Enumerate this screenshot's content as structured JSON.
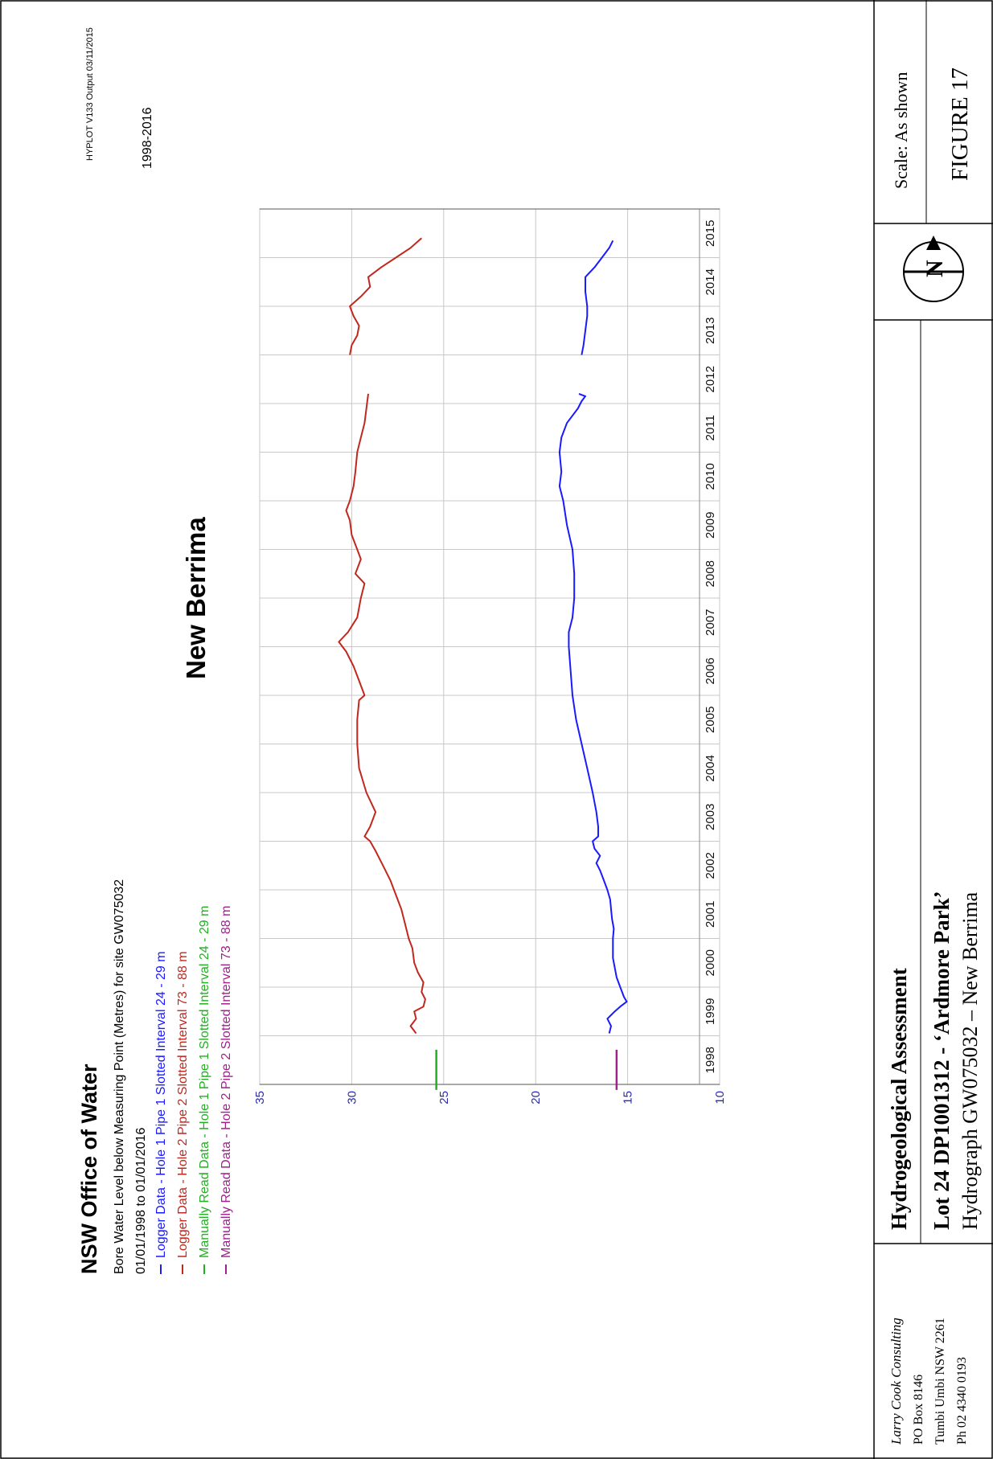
{
  "chart_data": {
    "type": "line",
    "orientation": "rotated-90-ccw",
    "title": "NSW Office of Water",
    "subtitle": "Bore Water Level below Measuring Point (Metres) for site GW075032",
    "date_range": "01/01/1998  to  01/01/2016",
    "output_info": "HYPLOT V133  Output 03/11/2015",
    "period": "1998-2016",
    "site_name": "New Berrima",
    "ylim": [
      10,
      35
    ],
    "y_inverted": true,
    "y_ticks": [
      "10",
      "15",
      "20",
      "25",
      "30",
      "35"
    ],
    "x_ticks": [
      "1998",
      "1999",
      "2000",
      "2001",
      "2002",
      "2003",
      "2004",
      "2005",
      "2006",
      "2007",
      "2008",
      "2009",
      "2010",
      "2011",
      "2012",
      "2013",
      "2014",
      "2015"
    ],
    "xlim": [
      1998,
      2016
    ],
    "grid": true,
    "legend_position": "top-left",
    "series": [
      {
        "name": "Logger Data - Hole 1 Pipe 1 Slotted Interval 24 - 29 m",
        "color": "#1a1aff",
        "points": [
          [
            1999.05,
            16.0
          ],
          [
            1999.2,
            15.9
          ],
          [
            1999.35,
            16.1
          ],
          [
            1999.5,
            15.7
          ],
          [
            1999.6,
            15.4
          ],
          [
            1999.7,
            15.05
          ],
          [
            1999.8,
            15.2
          ],
          [
            2000.0,
            15.4
          ],
          [
            2000.2,
            15.6
          ],
          [
            2000.4,
            15.7
          ],
          [
            2000.6,
            15.8
          ],
          [
            2000.8,
            15.8
          ],
          [
            2001.0,
            15.8
          ],
          [
            2001.2,
            15.75
          ],
          [
            2001.4,
            15.85
          ],
          [
            2001.6,
            15.9
          ],
          [
            2001.8,
            15.95
          ],
          [
            2002.0,
            16.1
          ],
          [
            2002.2,
            16.3
          ],
          [
            2002.4,
            16.5
          ],
          [
            2002.55,
            16.7
          ],
          [
            2002.7,
            16.5
          ],
          [
            2002.85,
            16.8
          ],
          [
            2003.0,
            16.9
          ],
          [
            2003.1,
            16.6
          ],
          [
            2003.3,
            16.6
          ],
          [
            2003.6,
            16.7
          ],
          [
            2004.0,
            16.9
          ],
          [
            2004.5,
            17.2
          ],
          [
            2005.0,
            17.5
          ],
          [
            2005.5,
            17.8
          ],
          [
            2006.0,
            18.0
          ],
          [
            2006.5,
            18.1
          ],
          [
            2007.0,
            18.2
          ],
          [
            2007.3,
            18.2
          ],
          [
            2007.6,
            18.0
          ],
          [
            2008.0,
            17.9
          ],
          [
            2008.5,
            17.9
          ],
          [
            2009.0,
            18.0
          ],
          [
            2009.5,
            18.3
          ],
          [
            2010.0,
            18.5
          ],
          [
            2010.3,
            18.7
          ],
          [
            2010.6,
            18.6
          ],
          [
            2011.0,
            18.7
          ],
          [
            2011.3,
            18.6
          ],
          [
            2011.6,
            18.3
          ],
          [
            2011.9,
            17.7
          ],
          [
            2012.05,
            17.5
          ],
          [
            2012.15,
            17.3
          ],
          [
            2012.2,
            17.65
          ]
        ]
      },
      {
        "name": "Logger Data - Hole 1 Pipe 1 Slotted Interval 24 - 29 m",
        "color": "#1a1aff",
        "points": [
          [
            2013.0,
            17.5
          ],
          [
            2013.2,
            17.4
          ],
          [
            2013.5,
            17.3
          ],
          [
            2013.8,
            17.2
          ],
          [
            2014.0,
            17.2
          ],
          [
            2014.3,
            17.3
          ],
          [
            2014.6,
            17.3
          ],
          [
            2014.8,
            16.8
          ],
          [
            2015.0,
            16.4
          ],
          [
            2015.2,
            16.0
          ],
          [
            2015.35,
            15.8
          ]
        ]
      },
      {
        "name": "Logger Data - Hole 2 Pipe 2 Slotted Interval 73 - 88 m",
        "color": "#c0281e",
        "points": [
          [
            1999.05,
            26.5
          ],
          [
            1999.2,
            26.8
          ],
          [
            1999.35,
            26.5
          ],
          [
            1999.5,
            26.6
          ],
          [
            1999.6,
            26.1
          ],
          [
            1999.75,
            26.0
          ],
          [
            1999.9,
            26.2
          ],
          [
            2000.1,
            26.1
          ],
          [
            2000.3,
            26.4
          ],
          [
            2000.5,
            26.6
          ],
          [
            2000.8,
            26.7
          ],
          [
            2001.0,
            26.9
          ],
          [
            2001.3,
            27.1
          ],
          [
            2001.6,
            27.3
          ],
          [
            2001.9,
            27.6
          ],
          [
            2002.2,
            27.9
          ],
          [
            2002.5,
            28.3
          ],
          [
            2002.8,
            28.7
          ],
          [
            2003.0,
            29.0
          ],
          [
            2003.1,
            29.3
          ],
          [
            2003.3,
            29.0
          ],
          [
            2003.6,
            28.7
          ],
          [
            2004.0,
            29.2
          ],
          [
            2004.5,
            29.6
          ],
          [
            2005.0,
            29.7
          ],
          [
            2005.5,
            29.7
          ],
          [
            2005.9,
            29.6
          ],
          [
            2006.0,
            29.3
          ],
          [
            2006.3,
            29.6
          ],
          [
            2006.6,
            29.9
          ],
          [
            2006.9,
            30.3
          ],
          [
            2007.1,
            30.7
          ],
          [
            2007.3,
            30.2
          ],
          [
            2007.6,
            29.7
          ],
          [
            2008.0,
            29.5
          ],
          [
            2008.3,
            29.3
          ],
          [
            2008.5,
            29.8
          ],
          [
            2008.8,
            29.5
          ],
          [
            2009.0,
            29.7
          ],
          [
            2009.3,
            30.0
          ],
          [
            2009.6,
            30.1
          ],
          [
            2009.8,
            30.3
          ],
          [
            2010.0,
            30.1
          ],
          [
            2010.3,
            29.9
          ],
          [
            2010.6,
            29.8
          ],
          [
            2011.0,
            29.7
          ],
          [
            2011.3,
            29.5
          ],
          [
            2011.6,
            29.3
          ],
          [
            2011.9,
            29.2
          ],
          [
            2012.2,
            29.1
          ]
        ]
      },
      {
        "name": "Logger Data - Hole 2 Pipe 2 Slotted Interval 73 - 88 m",
        "color": "#c0281e",
        "points": [
          [
            2013.0,
            30.1
          ],
          [
            2013.2,
            30.0
          ],
          [
            2013.4,
            29.7
          ],
          [
            2013.6,
            29.6
          ],
          [
            2013.8,
            29.9
          ],
          [
            2014.0,
            30.1
          ],
          [
            2014.2,
            29.5
          ],
          [
            2014.4,
            29.0
          ],
          [
            2014.6,
            29.1
          ],
          [
            2014.8,
            28.4
          ],
          [
            2015.0,
            27.6
          ],
          [
            2015.2,
            26.8
          ],
          [
            2015.4,
            26.2
          ]
        ]
      },
      {
        "name": "Manually Read Data - Hole 1 Pipe 1 Slotted Interval 24 - 29 m",
        "color": "#22b022",
        "points": [
          [
            1998.3,
            25.4
          ],
          [
            1998.3,
            25.4
          ]
        ]
      },
      {
        "name": "Manually Read Data - Hole 2 Pipe 2 Slotted Interval 73 - 88 m",
        "color": "#a0208c",
        "points": [
          [
            1998.3,
            15.6
          ],
          [
            1998.3,
            15.6
          ]
        ]
      }
    ]
  },
  "title_block": {
    "consultant_name": "Larry Cook Consulting",
    "po_box": "PO Box 8146",
    "address": "Tumbi Umbi NSW 2261",
    "phone": "Ph 02 4340 0193",
    "project_heading": "Hydrogeological Assessment",
    "lot_line": "Lot 24 DP1001312 - ‘Ardmore Park’",
    "hydrograph_line": "Hydrograph GW075032 – New Berrima",
    "north_label": "N",
    "scale": "Scale: As shown",
    "figure": "FIGURE 17"
  }
}
